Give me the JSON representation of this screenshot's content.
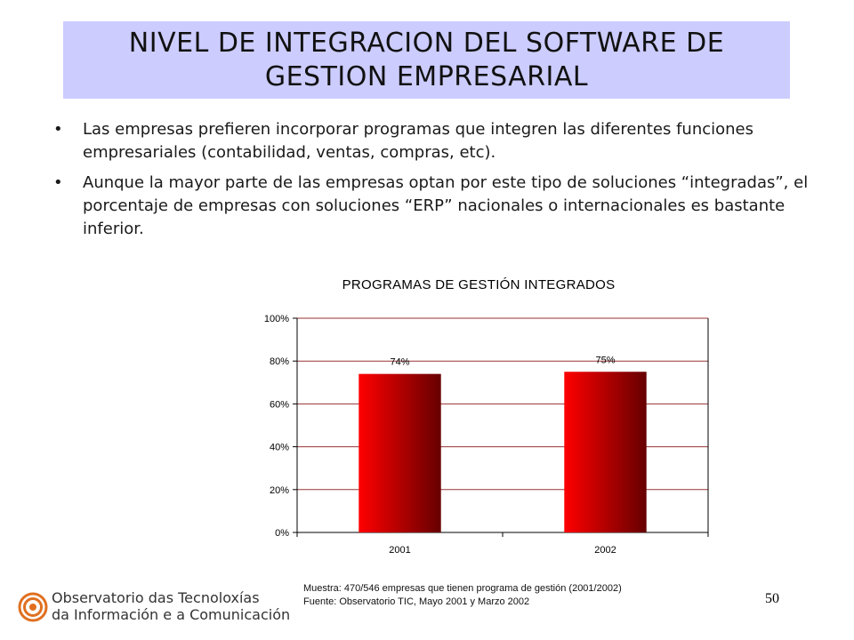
{
  "title": "NIVEL DE INTEGRACION DEL SOFTWARE DE GESTION EMPRESARIAL",
  "bullets": [
    "Las empresas prefieren incorporar programas que integren las diferentes funciones empresariales (contabilidad, ventas, compras, etc).",
    "Aunque la mayor parte de las empresas optan por este tipo de soluciones “integradas”, el porcentaje de empresas con soluciones “ERP” nacionales o internacionales es bastante inferior."
  ],
  "bullet_symbol": "•",
  "chart_data": {
    "type": "bar",
    "title": "PROGRAMAS DE GESTIÓN INTEGRADOS",
    "categories": [
      "2001",
      "2002"
    ],
    "values": [
      74,
      75
    ],
    "data_labels": [
      "74%",
      "75%"
    ],
    "ylim": [
      0,
      100
    ],
    "yticks": [
      "0%",
      "20%",
      "40%",
      "60%",
      "80%",
      "100%"
    ],
    "xlabel": "",
    "ylabel": "",
    "grid": true,
    "legend": "none",
    "colors": {
      "bar_light": "#ff0000",
      "bar_dark": "#660000",
      "grid": "#993333"
    }
  },
  "footnote": {
    "line1": "Muestra: 470/546  empresas que tienen programa de gestión (2001/2002)",
    "line2": "Fuente: Observatorio TIC,  Mayo 2001 y Marzo 2002"
  },
  "page_number": "50",
  "logo": {
    "line1": "Observatorio das Tecnoloxías",
    "line2": "da Información e a Comunicación",
    "icon": "spiral-logo-icon",
    "color": "#e07020"
  },
  "colors": {
    "title_bg": "#ccccff"
  }
}
